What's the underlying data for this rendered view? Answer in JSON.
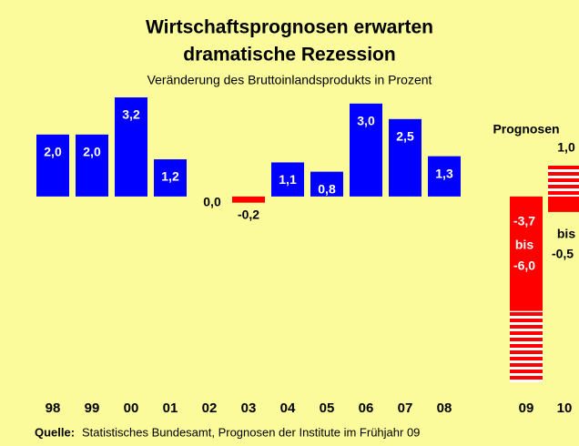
{
  "chart_data": {
    "type": "bar",
    "title": [
      "Wirtschaftsprognosen erwarten",
      "dramatische Rezession"
    ],
    "subtitle": "Veränderung des Bruttoinlandsprodukts in Prozent",
    "categories": [
      "98",
      "99",
      "00",
      "01",
      "02",
      "03",
      "04",
      "05",
      "06",
      "07",
      "08"
    ],
    "values": [
      2.0,
      2.0,
      3.2,
      1.2,
      0.0,
      -0.2,
      1.1,
      0.8,
      3.0,
      2.5,
      1.3
    ],
    "value_labels": [
      "2,0",
      "2,0",
      "3,2",
      "1,2",
      "0,0",
      "-0,2",
      "1,1",
      "0,8",
      "3,0",
      "2,5",
      "1,3"
    ],
    "color": "#0000ff",
    "negative_color": "#ff0000",
    "forecast": {
      "label": "Prognosen",
      "categories": [
        "09",
        "10"
      ],
      "solid": [
        -3.7,
        -0.5
      ],
      "solid_labels": [
        "-3,7",
        "-0,5"
      ],
      "striped": [
        -6.0,
        1.0
      ],
      "striped_labels": [
        "-6,0",
        "1,0"
      ],
      "connector": "bis"
    },
    "source_label": "Quelle:",
    "source": "Statistisches Bundesamt, Prognosen der Institute im Frühjahr 09"
  }
}
